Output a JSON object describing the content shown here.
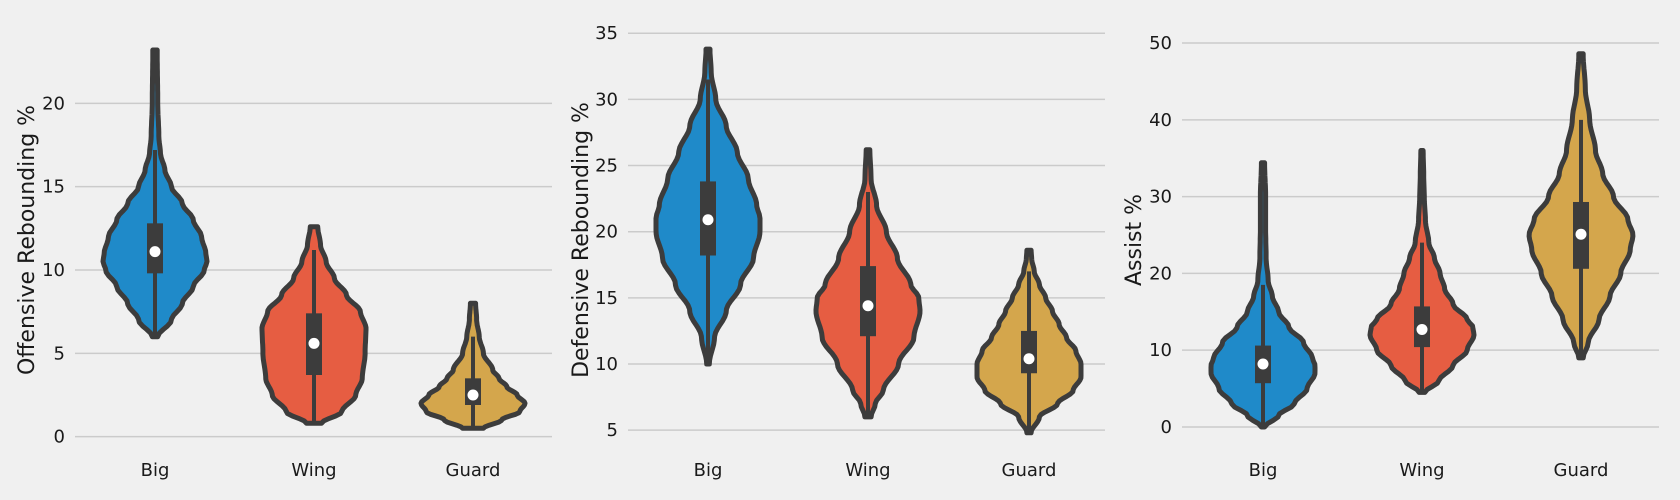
{
  "colors": {
    "background": "#f0f0f0",
    "grid": "#cbcbcb",
    "outline": "#3c3c3c",
    "median_dot": "#ffffff",
    "categories": [
      "#1f8ac9",
      "#e65d42",
      "#d4a64c"
    ]
  },
  "chart_data": [
    {
      "type": "violin",
      "ylabel": "Offensive Rebounding %",
      "categories": [
        "Big",
        "Wing",
        "Guard"
      ],
      "yticks": [
        0,
        5,
        10,
        15,
        20
      ],
      "yticklabels": [
        "0",
        "5",
        "10",
        "15",
        "20"
      ],
      "ylim": [
        -0.8,
        25
      ],
      "grid": true,
      "violins": [
        {
          "category": "Big",
          "min": 6,
          "max": 23.2,
          "q1": 9.8,
          "median": 11.1,
          "q3": 12.8,
          "whisker_low": 6,
          "whisker_high": 17.2,
          "profile": [
            [
              6,
              0.05
            ],
            [
              7,
              0.3
            ],
            [
              8,
              0.5
            ],
            [
              9,
              0.7
            ],
            [
              10,
              0.9
            ],
            [
              10.5,
              0.95
            ],
            [
              11,
              0.93
            ],
            [
              12,
              0.85
            ],
            [
              13,
              0.7
            ],
            [
              14,
              0.5
            ],
            [
              15,
              0.3
            ],
            [
              16,
              0.18
            ],
            [
              17,
              0.1
            ],
            [
              18,
              0.07
            ],
            [
              20,
              0.05
            ],
            [
              23.2,
              0.04
            ]
          ]
        },
        {
          "category": "Wing",
          "min": 0.8,
          "max": 12.6,
          "q1": 3.7,
          "median": 5.6,
          "q3": 7.4,
          "whisker_low": 0.8,
          "whisker_high": 11.2,
          "profile": [
            [
              0.8,
              0.08
            ],
            [
              1.5,
              0.3
            ],
            [
              2.5,
              0.45
            ],
            [
              3.5,
              0.52
            ],
            [
              5,
              0.55
            ],
            [
              6.5,
              0.56
            ],
            [
              7.5,
              0.5
            ],
            [
              8.5,
              0.35
            ],
            [
              9.5,
              0.22
            ],
            [
              10.5,
              0.13
            ],
            [
              11.5,
              0.07
            ],
            [
              12.6,
              0.04
            ]
          ]
        },
        {
          "category": "Guard",
          "min": 0.5,
          "max": 8,
          "q1": 1.9,
          "median": 2.5,
          "q3": 3.5,
          "whisker_low": 0.5,
          "whisker_high": 6,
          "profile": [
            [
              0.5,
              0.2
            ],
            [
              1,
              0.55
            ],
            [
              1.5,
              0.9
            ],
            [
              2,
              1
            ],
            [
              2.5,
              0.85
            ],
            [
              3,
              0.65
            ],
            [
              3.5,
              0.5
            ],
            [
              4,
              0.38
            ],
            [
              5,
              0.2
            ],
            [
              6,
              0.12
            ],
            [
              7,
              0.07
            ],
            [
              8,
              0.05
            ]
          ]
        }
      ]
    },
    {
      "type": "violin",
      "ylabel": "Defensive Rebounding %",
      "categories": [
        "Big",
        "Wing",
        "Guard"
      ],
      "yticks": [
        5,
        10,
        15,
        20,
        25,
        30,
        35
      ],
      "yticklabels": [
        "5",
        "10",
        "15",
        "20",
        "25",
        "30",
        "35"
      ],
      "ylim": [
        3.5,
        36
      ],
      "grid": true,
      "violins": [
        {
          "category": "Big",
          "min": 10,
          "max": 33.8,
          "q1": 18.2,
          "median": 20.9,
          "q3": 23.8,
          "whisker_low": 10,
          "whisker_high": 31.5,
          "profile": [
            [
              10,
              0.02
            ],
            [
              12,
              0.1
            ],
            [
              14,
              0.28
            ],
            [
              16,
              0.5
            ],
            [
              18,
              0.7
            ],
            [
              20,
              0.8
            ],
            [
              21,
              0.8
            ],
            [
              22,
              0.75
            ],
            [
              24,
              0.62
            ],
            [
              26,
              0.45
            ],
            [
              28,
              0.28
            ],
            [
              30,
              0.12
            ],
            [
              32,
              0.05
            ],
            [
              33.8,
              0.03
            ]
          ]
        },
        {
          "category": "Wing",
          "min": 6,
          "max": 26.2,
          "q1": 12.1,
          "median": 14.4,
          "q3": 17.4,
          "whisker_low": 6,
          "whisker_high": 23,
          "profile": [
            [
              6,
              0.05
            ],
            [
              7,
              0.12
            ],
            [
              8,
              0.25
            ],
            [
              10,
              0.5
            ],
            [
              12,
              0.75
            ],
            [
              14,
              0.85
            ],
            [
              15,
              0.83
            ],
            [
              16,
              0.7
            ],
            [
              18,
              0.48
            ],
            [
              20,
              0.3
            ],
            [
              22,
              0.14
            ],
            [
              24,
              0.05
            ],
            [
              26.2,
              0.03
            ]
          ]
        },
        {
          "category": "Guard",
          "min": 4.8,
          "max": 18.6,
          "q1": 9.3,
          "median": 10.4,
          "q3": 12.5,
          "whisker_low": 4.8,
          "whisker_high": 17,
          "profile": [
            [
              4.8,
              0.04
            ],
            [
              6,
              0.2
            ],
            [
              7,
              0.55
            ],
            [
              8,
              0.85
            ],
            [
              9,
              1
            ],
            [
              10,
              1
            ],
            [
              11,
              0.9
            ],
            [
              12,
              0.72
            ],
            [
              13,
              0.58
            ],
            [
              14,
              0.45
            ],
            [
              15,
              0.32
            ],
            [
              16,
              0.2
            ],
            [
              17,
              0.1
            ],
            [
              18,
              0.05
            ],
            [
              18.6,
              0.04
            ]
          ]
        }
      ]
    },
    {
      "type": "violin",
      "ylabel": "Assist %",
      "categories": [
        "Big",
        "Wing",
        "Guard"
      ],
      "yticks": [
        0,
        10,
        20,
        30,
        40,
        50
      ],
      "yticklabels": [
        "0",
        "10",
        "20",
        "30",
        "40",
        "50"
      ],
      "ylim": [
        -3,
        53
      ],
      "grid": true,
      "violins": [
        {
          "category": "Big",
          "min": 0,
          "max": 34.4,
          "q1": 5.7,
          "median": 8.2,
          "q3": 10.6,
          "whisker_low": 0,
          "whisker_high": 18.5,
          "profile": [
            [
              0,
              0.03
            ],
            [
              1.5,
              0.3
            ],
            [
              3,
              0.6
            ],
            [
              5,
              0.85
            ],
            [
              7,
              1
            ],
            [
              8,
              1
            ],
            [
              9,
              0.95
            ],
            [
              11,
              0.78
            ],
            [
              13,
              0.5
            ],
            [
              15,
              0.3
            ],
            [
              17,
              0.18
            ],
            [
              19,
              0.1
            ],
            [
              22,
              0.06
            ],
            [
              26,
              0.05
            ],
            [
              30,
              0.05
            ],
            [
              34.4,
              0.03
            ]
          ]
        },
        {
          "category": "Wing",
          "min": 4.5,
          "max": 36,
          "q1": 10.4,
          "median": 12.7,
          "q3": 15.7,
          "whisker_low": 4.5,
          "whisker_high": 24,
          "profile": [
            [
              4.5,
              0.05
            ],
            [
              6,
              0.3
            ],
            [
              8,
              0.55
            ],
            [
              10,
              0.8
            ],
            [
              12,
              0.92
            ],
            [
              13,
              0.9
            ],
            [
              14,
              0.8
            ],
            [
              16,
              0.55
            ],
            [
              18,
              0.4
            ],
            [
              20,
              0.32
            ],
            [
              22,
              0.22
            ],
            [
              24,
              0.12
            ],
            [
              27,
              0.06
            ],
            [
              30,
              0.04
            ],
            [
              33,
              0.03
            ],
            [
              36,
              0.02
            ]
          ]
        },
        {
          "category": "Guard",
          "min": 9,
          "max": 48.6,
          "q1": 20.6,
          "median": 25.1,
          "q3": 29.3,
          "whisker_low": 9,
          "whisker_high": 40,
          "profile": [
            [
              9,
              0.03
            ],
            [
              11,
              0.1
            ],
            [
              14,
              0.25
            ],
            [
              17,
              0.4
            ],
            [
              20,
              0.55
            ],
            [
              23,
              0.68
            ],
            [
              25,
              0.72
            ],
            [
              27,
              0.65
            ],
            [
              30,
              0.45
            ],
            [
              33,
              0.3
            ],
            [
              36,
              0.2
            ],
            [
              40,
              0.12
            ],
            [
              44,
              0.06
            ],
            [
              48.6,
              0.03
            ]
          ]
        }
      ]
    }
  ]
}
